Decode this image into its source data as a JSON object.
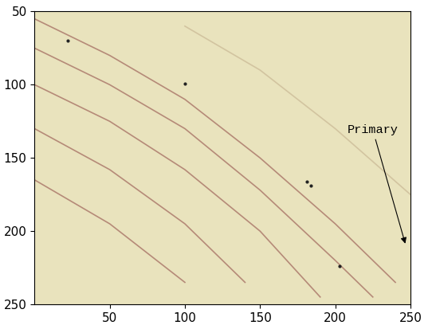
{
  "chart_data": {
    "type": "line",
    "xlim": [
      0,
      250
    ],
    "ylim": [
      250,
      50
    ],
    "xticks": [
      50,
      100,
      150,
      200,
      250
    ],
    "yticks": [
      50,
      100,
      150,
      200,
      250
    ],
    "grid": false,
    "series": [
      {
        "type": "line",
        "color": "#b58a78",
        "line_style": "solid",
        "x": [
          0,
          50,
          100,
          150,
          200,
          240
        ],
        "values": [
          55,
          80,
          110,
          150,
          195,
          235
        ]
      },
      {
        "type": "line",
        "color": "#b58a78",
        "line_style": "solid",
        "x": [
          0,
          50,
          100,
          150,
          200,
          225
        ],
        "values": [
          75,
          100,
          130,
          172,
          220,
          245
        ]
      },
      {
        "type": "line",
        "color": "#b58a78",
        "line_style": "solid",
        "x": [
          0,
          50,
          100,
          150,
          190
        ],
        "values": [
          100,
          125,
          158,
          200,
          245
        ]
      },
      {
        "type": "line",
        "color": "#b58a78",
        "line_style": "solid",
        "x": [
          0,
          50,
          100,
          140
        ],
        "values": [
          130,
          158,
          195,
          235
        ]
      },
      {
        "type": "line",
        "color": "#b58a78",
        "line_style": "solid",
        "x": [
          0,
          50,
          100
        ],
        "values": [
          165,
          195,
          235
        ]
      },
      {
        "type": "line",
        "color": "#d2c4a0",
        "line_style": "solid",
        "x": [
          100,
          150,
          200,
          250
        ],
        "values": [
          60,
          90,
          130,
          175
        ]
      },
      {
        "type": "scatter",
        "color": "#222222",
        "marker": "dot",
        "x": [
          22,
          100,
          181,
          184,
          203
        ],
        "values": [
          70,
          99,
          166,
          169,
          224
        ]
      }
    ],
    "annotations": [
      {
        "text": "Primary",
        "x": 247,
        "y": 210
      }
    ]
  }
}
